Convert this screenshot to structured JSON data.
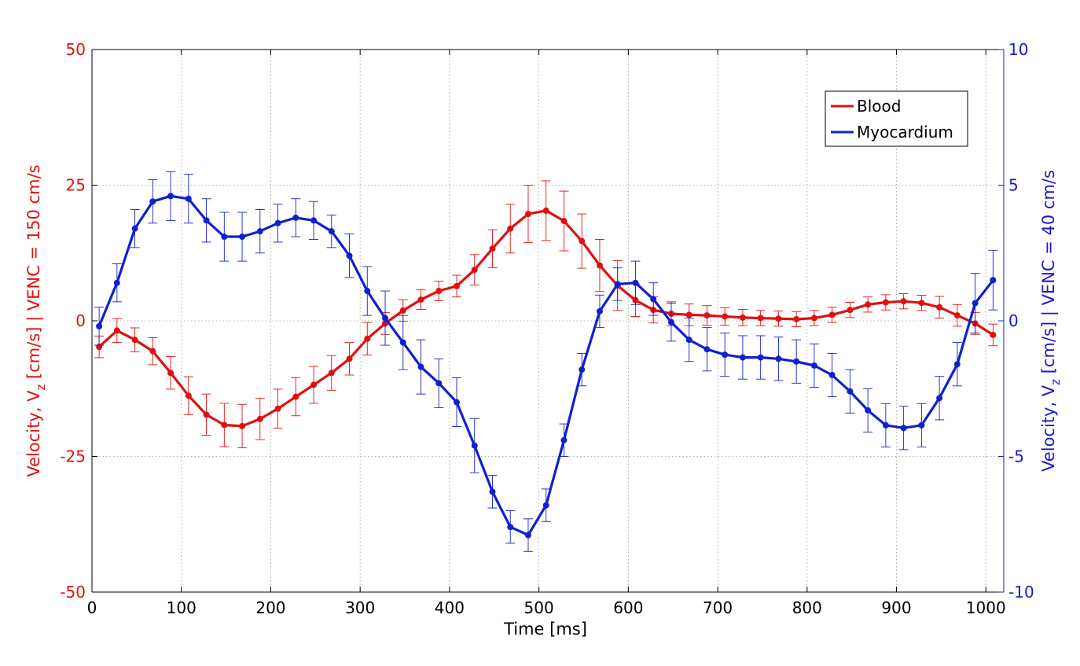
{
  "chart_data": {
    "type": "line",
    "xlabel": "Time [ms]",
    "ylabel_left": {
      "main": "Velocity, V",
      "sub": "z",
      "rest": " [cm/s] | VENC = 150 cm/s"
    },
    "ylabel_right": {
      "main": "Velocity, V",
      "sub": "z",
      "rest": " [cm/s] | VENC = 40 cm/s"
    },
    "xlim": [
      0,
      1020
    ],
    "ylim_left": [
      -50,
      50
    ],
    "ylim_right": [
      -10,
      10
    ],
    "x_ticks": [
      0,
      100,
      200,
      300,
      400,
      500,
      600,
      700,
      800,
      900,
      1000
    ],
    "x_tick_labels": [
      "0",
      "100",
      "200",
      "300",
      "400",
      "500",
      "600",
      "700",
      "800",
      "900",
      "1000"
    ],
    "y_left_ticks": [
      -50,
      -25,
      0,
      25,
      50
    ],
    "y_left_tick_labels": [
      "-50",
      "-25",
      "0",
      "25",
      "50"
    ],
    "y_right_ticks": [
      -10,
      -5,
      0,
      5,
      10
    ],
    "y_right_tick_labels": [
      "-10",
      "-5",
      "0",
      "5",
      "10"
    ],
    "grid": true,
    "legend_position": "top-right",
    "colors": {
      "blood": "#e01010",
      "myocardium": "#1020d0",
      "axis": "#000000",
      "right_axis": "#1a1acc"
    },
    "series": [
      {
        "name": "Blood",
        "axis": "left",
        "color": "#e01010",
        "x": [
          8,
          28,
          48,
          68,
          88,
          108,
          128,
          148,
          168,
          188,
          208,
          228,
          248,
          268,
          288,
          308,
          328,
          348,
          368,
          388,
          408,
          428,
          448,
          468,
          488,
          508,
          528,
          548,
          568,
          588,
          608,
          628,
          648,
          668,
          688,
          708,
          728,
          748,
          768,
          788,
          808,
          828,
          848,
          868,
          888,
          908,
          928,
          948,
          968,
          988,
          1008
        ],
        "values": [
          -4.8,
          -1.8,
          -3.5,
          -5.6,
          -9.6,
          -13.8,
          -17.3,
          -19.2,
          -19.4,
          -18.1,
          -16.2,
          -14.0,
          -11.8,
          -9.6,
          -7.0,
          -3.3,
          -0.5,
          1.9,
          3.9,
          5.5,
          6.4,
          9.4,
          13.3,
          17.0,
          19.7,
          20.3,
          18.4,
          14.7,
          10.2,
          6.5,
          3.8,
          2.0,
          1.3,
          1.1,
          1.0,
          0.8,
          0.6,
          0.5,
          0.4,
          0.3,
          0.5,
          1.1,
          2.0,
          3.0,
          3.4,
          3.6,
          3.3,
          2.5,
          1.0,
          -0.5,
          -2.6
        ],
        "errors": [
          2.0,
          2.2,
          2.2,
          2.5,
          3.0,
          3.5,
          3.8,
          4.0,
          4.0,
          3.8,
          3.6,
          3.5,
          3.4,
          3.2,
          3.0,
          3.0,
          2.0,
          2.0,
          1.8,
          1.8,
          2.0,
          2.8,
          3.5,
          4.5,
          5.3,
          5.5,
          5.5,
          5.0,
          4.8,
          4.6,
          3.0,
          2.4,
          2.2,
          2.0,
          1.8,
          1.6,
          1.5,
          1.4,
          1.4,
          1.4,
          1.4,
          1.4,
          1.4,
          1.4,
          1.4,
          1.4,
          1.4,
          2.0,
          2.0,
          2.0,
          2.0
        ]
      },
      {
        "name": "Myocardium",
        "axis": "right",
        "color": "#1020d0",
        "x": [
          8,
          28,
          48,
          68,
          88,
          108,
          128,
          148,
          168,
          188,
          208,
          228,
          248,
          268,
          288,
          308,
          328,
          348,
          368,
          388,
          408,
          428,
          448,
          468,
          488,
          508,
          528,
          548,
          568,
          588,
          608,
          628,
          648,
          668,
          688,
          708,
          728,
          748,
          768,
          788,
          808,
          828,
          848,
          868,
          888,
          908,
          928,
          948,
          968,
          988,
          1008
        ],
        "values": [
          -0.2,
          1.4,
          3.4,
          4.4,
          4.6,
          4.5,
          3.7,
          3.1,
          3.1,
          3.3,
          3.6,
          3.8,
          3.7,
          3.3,
          2.4,
          1.1,
          0.1,
          -0.8,
          -1.7,
          -2.3,
          -3.0,
          -4.6,
          -6.3,
          -7.6,
          -7.9,
          -6.8,
          -4.4,
          -1.8,
          0.35,
          1.35,
          1.4,
          0.8,
          -0.05,
          -0.7,
          -1.05,
          -1.25,
          -1.35,
          -1.35,
          -1.4,
          -1.5,
          -1.65,
          -2.0,
          -2.6,
          -3.3,
          -3.85,
          -3.95,
          -3.85,
          -2.85,
          -1.6,
          0.65,
          1.5
        ],
        "errors": [
          0.7,
          0.7,
          0.7,
          0.8,
          0.9,
          0.9,
          0.8,
          0.9,
          0.9,
          0.8,
          0.7,
          0.7,
          0.7,
          0.6,
          0.8,
          0.9,
          1.0,
          1.0,
          1.0,
          0.9,
          0.9,
          1.0,
          0.6,
          0.6,
          0.6,
          0.6,
          0.6,
          0.6,
          0.6,
          0.6,
          0.8,
          0.6,
          0.7,
          0.8,
          0.8,
          0.8,
          0.8,
          0.8,
          0.8,
          0.8,
          0.8,
          0.8,
          0.8,
          0.8,
          0.8,
          0.8,
          0.8,
          0.8,
          0.8,
          1.1,
          1.1
        ]
      }
    ],
    "legend": [
      "Blood",
      "Myocardium"
    ]
  }
}
